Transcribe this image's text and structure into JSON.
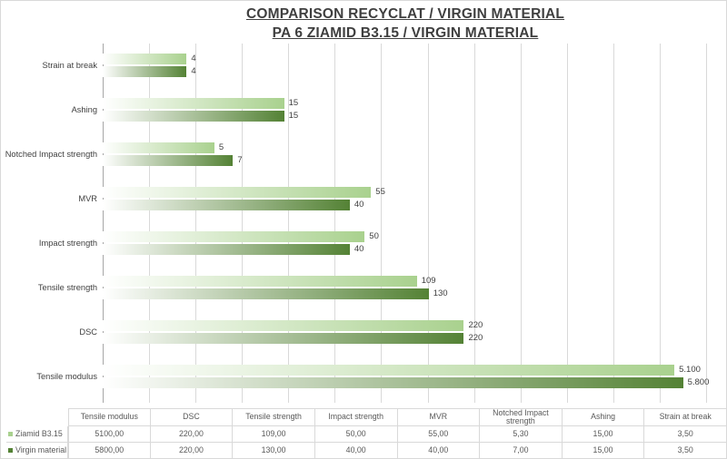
{
  "title": {
    "line1": "COMPARISON RECYCLAT / VIRGIN MATERIAL",
    "line2": "PA 6 ZIAMID B3.15 / VIRGIN MATERIAL"
  },
  "chart_data": {
    "type": "bar",
    "orientation": "horizontal",
    "title": "COMPARISON RECYCLAT / VIRGIN MATERIAL PA 6 ZIAMID B3.15 / VIRGIN MATERIAL",
    "value_axis": {
      "scale": "log2",
      "min": 1,
      "max": 8192,
      "tick_labels_shown": false,
      "gridlines": "vertical at powers of 2"
    },
    "categories_top_to_bottom": [
      "Strain at break",
      "Ashing",
      "Notched Impact strength",
      "MVR",
      "Impact strength",
      "Tensile strength",
      "DSC",
      "Tensile modulus"
    ],
    "series": [
      {
        "name": "Ziamid B3.15",
        "color": "#a9d18e",
        "values": [
          3.5,
          15,
          5.3,
          55,
          50,
          109,
          220,
          5100
        ],
        "bar_labels": [
          "4",
          "15",
          "5",
          "55",
          "50",
          "109",
          "220",
          "5.100"
        ]
      },
      {
        "name": "Virgin material",
        "color": "#548235",
        "values": [
          3.5,
          15,
          7,
          40,
          40,
          130,
          220,
          5800
        ],
        "bar_labels": [
          "4",
          "15",
          "7",
          "40",
          "40",
          "130",
          "220",
          "5.800"
        ]
      }
    ],
    "bar_fill": "linear gradient white (axis side) to series color (bar end)",
    "legend_position": "bottom data table row headers"
  },
  "table": {
    "columns": [
      "Tensile modulus",
      "DSC",
      "Tensile strength",
      "Impact strength",
      "MVR",
      "Notched Impact strength",
      "Ashing",
      "Strain at break"
    ],
    "rows": [
      {
        "name": "Ziamid B3.15",
        "swatch_color": "#a9d18e",
        "values": [
          "5100,00",
          "220,00",
          "109,00",
          "50,00",
          "55,00",
          "5,30",
          "15,00",
          "3,50"
        ]
      },
      {
        "name": "Virgin material",
        "swatch_color": "#548235",
        "values": [
          "5800,00",
          "220,00",
          "130,00",
          "40,00",
          "40,00",
          "7,00",
          "15,00",
          "3,50"
        ]
      }
    ]
  },
  "colors": {
    "series_light": "#a9d18e",
    "series_dark": "#548235",
    "gridline": "#d9d9d9",
    "axis_line": "#a6a6a6",
    "text": "#404040",
    "table_text": "#595959",
    "table_border": "#d9d9d9"
  }
}
